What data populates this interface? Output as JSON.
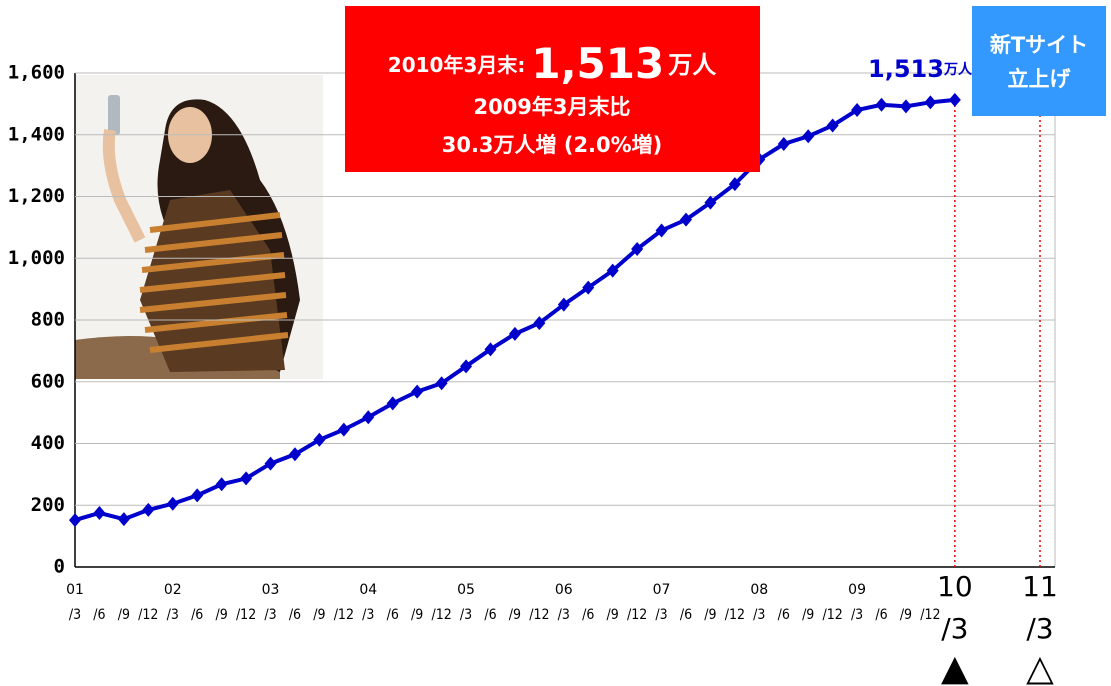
{
  "chart_data": {
    "type": "line",
    "categories": [
      "/3",
      "/6",
      "/9",
      "/12",
      "/3",
      "/6",
      "/9",
      "/12",
      "/3",
      "/6",
      "/9",
      "/12",
      "/3",
      "/6",
      "/9",
      "/12",
      "/3",
      "/6",
      "/9",
      "/12",
      "/3",
      "/6",
      "/9",
      "/12",
      "/3",
      "/6",
      "/9",
      "/12",
      "/3",
      "/6",
      "/9",
      "/12",
      "/3",
      "/6",
      "/9",
      "/12",
      "/3"
    ],
    "year_labels": [
      "01",
      "02",
      "03",
      "04",
      "05",
      "06",
      "07",
      "08",
      "09",
      "10"
    ],
    "extra_tick": {
      "year": "11",
      "label": "/3"
    },
    "values": [
      152,
      175,
      155,
      185,
      205,
      232,
      268,
      287,
      335,
      365,
      412,
      445,
      485,
      530,
      568,
      595,
      650,
      705,
      755,
      790,
      850,
      905,
      960,
      1030,
      1090,
      1125,
      1180,
      1240,
      1320,
      1370,
      1395,
      1430,
      1480,
      1497,
      1492,
      1505,
      1513
    ],
    "color": "#0000cc",
    "ylim": [
      0,
      1600
    ],
    "yticks": [
      0,
      200,
      400,
      600,
      800,
      {
        "value": 1000,
        "label": "1,000"
      },
      {
        "value": 1200,
        "label": "1,200"
      },
      {
        "value": 1400,
        "label": "1,400"
      },
      {
        "value": 1600,
        "label": "1,600"
      }
    ],
    "grid": true,
    "value_label": {
      "number": "1,513",
      "unit": "万人"
    },
    "callout": {
      "line1_prefix": "2010年3月末:",
      "line1_number": "1,513",
      "line1_unit": "万人",
      "line2": "2009年3月末比",
      "line3": "30.3万人増 (2.0%増)"
    },
    "badge": {
      "line1": "新Tサイト",
      "line2": "立上げ"
    },
    "markers": [
      "▲",
      "△"
    ]
  }
}
